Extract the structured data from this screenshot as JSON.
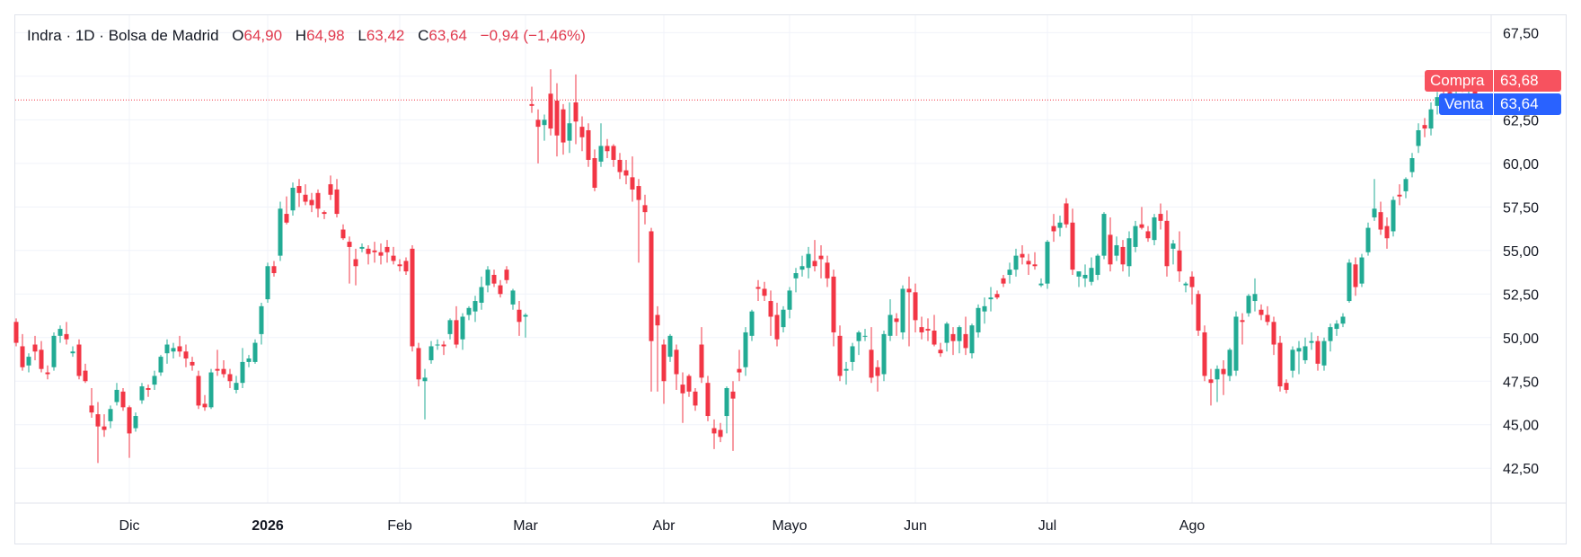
{
  "legend": {
    "title": "Indra · 1D · Bolsa de Madrid",
    "o_label": "O",
    "o_value": "64,90",
    "h_label": "H",
    "h_value": "64,98",
    "l_label": "L",
    "l_value": "63,42",
    "c_label": "C",
    "c_value": "63,64",
    "change": "−0,94 (−1,46%)"
  },
  "badges": {
    "compra_label": "Compra",
    "compra_value": "63,68",
    "venta_label": "Venta",
    "venta_value": "63,64"
  },
  "colors": {
    "up": "#22ab94",
    "down": "#f23645",
    "compra": "#f7525f",
    "venta": "#2962ff",
    "grid": "#f0f3fa"
  },
  "chart_data": {
    "type": "candlestick",
    "ylim": [
      40.5,
      68.5
    ],
    "y_ticks": [
      42.5,
      45,
      47.5,
      50,
      52.5,
      55,
      57.5,
      60,
      62.5,
      65,
      67.5
    ],
    "y_tick_labels": [
      "42,50",
      "45,00",
      "47,50",
      "50,00",
      "52,50",
      "55,00",
      "57,50",
      "60,00",
      "62,50",
      "65,00",
      "67,50"
    ],
    "x_ticks": [
      {
        "label": "Dic",
        "index": 18,
        "bold": false
      },
      {
        "label": "2026",
        "index": 40,
        "bold": true
      },
      {
        "label": "Feb",
        "index": 61,
        "bold": false
      },
      {
        "label": "Mar",
        "index": 81,
        "bold": false
      },
      {
        "label": "Abr",
        "index": 103,
        "bold": false
      },
      {
        "label": "Mayo",
        "index": 123,
        "bold": false
      },
      {
        "label": "Jun",
        "index": 143,
        "bold": false
      },
      {
        "label": "Jul",
        "index": 164,
        "bold": false
      },
      {
        "label": "Ago",
        "index": 187,
        "bold": false
      }
    ],
    "last_price": 63.64,
    "ohlc": [
      [
        50.9,
        51.1,
        49.5,
        49.7
      ],
      [
        49.5,
        50.2,
        48.1,
        48.3
      ],
      [
        48.4,
        49.1,
        48.0,
        48.9
      ],
      [
        49.6,
        50.1,
        48.7,
        49.2
      ],
      [
        49.3,
        49.8,
        48.0,
        48.2
      ],
      [
        48.0,
        48.4,
        47.6,
        47.9
      ],
      [
        48.3,
        50.3,
        48.1,
        50.1
      ],
      [
        50.1,
        50.7,
        49.7,
        50.5
      ],
      [
        50.2,
        50.9,
        49.6,
        49.9
      ],
      [
        49.1,
        49.5,
        48.9,
        49.2
      ],
      [
        49.6,
        49.9,
        47.6,
        47.8
      ],
      [
        48.1,
        48.5,
        47.4,
        47.5
      ],
      [
        46.1,
        47.1,
        45.4,
        45.7
      ],
      [
        45.6,
        46.3,
        42.8,
        44.9
      ],
      [
        44.9,
        45.6,
        44.3,
        44.7
      ],
      [
        45.2,
        46.1,
        44.8,
        45.9
      ],
      [
        46.3,
        47.4,
        46.1,
        47.0
      ],
      [
        46.9,
        47.1,
        45.8,
        46.0
      ],
      [
        46.0,
        46.1,
        43.1,
        44.5
      ],
      [
        44.8,
        45.7,
        44.6,
        45.5
      ],
      [
        46.4,
        47.4,
        46.2,
        47.2
      ],
      [
        47.1,
        47.3,
        46.6,
        47.0
      ],
      [
        47.3,
        48.1,
        47.0,
        47.8
      ],
      [
        48.0,
        49.0,
        47.8,
        48.9
      ],
      [
        49.1,
        49.9,
        48.5,
        49.6
      ],
      [
        49.2,
        49.7,
        48.8,
        49.4
      ],
      [
        49.5,
        50.1,
        48.9,
        49.2
      ],
      [
        49.2,
        49.6,
        48.3,
        48.8
      ],
      [
        48.6,
        48.9,
        48.1,
        48.4
      ],
      [
        47.8,
        48.1,
        45.9,
        46.1
      ],
      [
        46.2,
        46.7,
        45.8,
        46.0
      ],
      [
        46.0,
        48.2,
        45.9,
        48.0
      ],
      [
        48.2,
        49.3,
        47.8,
        48.1
      ],
      [
        48.2,
        48.7,
        47.7,
        47.9
      ],
      [
        47.9,
        48.2,
        47.1,
        47.5
      ],
      [
        47.0,
        47.8,
        46.8,
        47.4
      ],
      [
        47.4,
        49.4,
        47.1,
        48.6
      ],
      [
        48.6,
        49.0,
        48.3,
        48.8
      ],
      [
        48.6,
        49.9,
        48.5,
        49.7
      ],
      [
        50.2,
        52.0,
        49.6,
        51.8
      ],
      [
        52.2,
        54.3,
        52.0,
        54.1
      ],
      [
        54.1,
        54.4,
        53.5,
        53.7
      ],
      [
        54.7,
        57.8,
        54.4,
        57.4
      ],
      [
        57.1,
        58.1,
        56.5,
        56.6
      ],
      [
        57.3,
        58.9,
        57.0,
        58.6
      ],
      [
        58.7,
        59.1,
        57.5,
        58.3
      ],
      [
        58.2,
        58.8,
        57.6,
        57.8
      ],
      [
        57.9,
        58.3,
        57.2,
        57.6
      ],
      [
        58.3,
        58.5,
        56.9,
        57.4
      ],
      [
        57.2,
        57.3,
        56.8,
        57.1
      ],
      [
        58.8,
        59.3,
        57.9,
        58.2
      ],
      [
        58.5,
        59.1,
        56.9,
        57.1
      ],
      [
        56.2,
        56.5,
        55.6,
        55.7
      ],
      [
        55.5,
        55.8,
        53.1,
        55.2
      ],
      [
        54.5,
        55.1,
        53.0,
        54.1
      ],
      [
        55.1,
        55.4,
        54.9,
        55.2
      ],
      [
        55.1,
        55.3,
        54.2,
        54.8
      ],
      [
        55.0,
        55.5,
        54.3,
        54.9
      ],
      [
        54.9,
        55.4,
        54.2,
        54.7
      ],
      [
        55.2,
        55.6,
        54.3,
        54.9
      ],
      [
        54.7,
        55.2,
        54.2,
        54.4
      ],
      [
        54.2,
        54.5,
        53.8,
        54.1
      ],
      [
        54.4,
        54.6,
        53.6,
        53.8
      ],
      [
        55.1,
        55.3,
        49.2,
        49.5
      ],
      [
        49.4,
        49.7,
        47.2,
        47.6
      ],
      [
        47.5,
        48.2,
        45.3,
        47.7
      ],
      [
        48.7,
        49.8,
        48.5,
        49.5
      ],
      [
        49.6,
        49.9,
        49.3,
        49.6
      ],
      [
        49.6,
        49.8,
        49.0,
        49.5
      ],
      [
        50.2,
        51.1,
        49.9,
        51.0
      ],
      [
        51.0,
        51.8,
        49.4,
        49.6
      ],
      [
        49.9,
        51.4,
        49.3,
        51.2
      ],
      [
        51.3,
        51.8,
        51.0,
        51.7
      ],
      [
        51.5,
        52.4,
        50.9,
        52.1
      ],
      [
        52.0,
        53.5,
        51.6,
        52.9
      ],
      [
        53.0,
        54.1,
        52.6,
        53.9
      ],
      [
        53.6,
        53.9,
        52.9,
        53.1
      ],
      [
        53.0,
        53.3,
        52.3,
        52.5
      ],
      [
        53.9,
        54.1,
        53.1,
        53.3
      ],
      [
        51.9,
        52.8,
        51.6,
        52.7
      ],
      [
        51.6,
        52.1,
        50.1,
        50.9
      ],
      [
        51.2,
        51.4,
        50.0,
        51.3
      ],
      [
        63.4,
        64.4,
        62.9,
        63.3
      ],
      [
        62.5,
        63.1,
        60.0,
        62.1
      ],
      [
        62.2,
        62.8,
        61.3,
        62.5
      ],
      [
        64.0,
        65.4,
        61.6,
        62.0
      ],
      [
        63.6,
        64.6,
        60.4,
        61.6
      ],
      [
        63.1,
        63.4,
        60.5,
        61.2
      ],
      [
        61.3,
        63.5,
        60.6,
        62.3
      ],
      [
        63.5,
        65.1,
        61.1,
        62.4
      ],
      [
        62.1,
        62.7,
        60.7,
        61.5
      ],
      [
        61.9,
        62.3,
        59.8,
        60.2
      ],
      [
        60.3,
        60.8,
        58.4,
        58.6
      ],
      [
        60.1,
        62.3,
        59.8,
        61.0
      ],
      [
        61.0,
        61.4,
        60.3,
        60.7
      ],
      [
        61.0,
        61.1,
        59.8,
        60.2
      ],
      [
        60.2,
        60.6,
        59.1,
        59.5
      ],
      [
        59.6,
        60.2,
        58.8,
        59.3
      ],
      [
        59.2,
        60.4,
        57.8,
        58.5
      ],
      [
        58.7,
        59.1,
        54.3,
        57.9
      ],
      [
        57.6,
        58.2,
        56.5,
        57.2
      ],
      [
        56.1,
        56.3,
        46.9,
        49.8
      ],
      [
        51.3,
        51.8,
        46.9,
        50.7
      ],
      [
        49.6,
        49.9,
        46.2,
        47.5
      ],
      [
        48.9,
        50.2,
        48.6,
        50.1
      ],
      [
        49.3,
        49.6,
        47.0,
        47.9
      ],
      [
        47.3,
        48.0,
        45.1,
        46.8
      ],
      [
        47.8,
        47.9,
        46.6,
        46.9
      ],
      [
        46.9,
        47.1,
        45.8,
        46.1
      ],
      [
        49.6,
        50.6,
        47.4,
        47.7
      ],
      [
        47.4,
        47.8,
        45.2,
        45.5
      ],
      [
        44.8,
        45.3,
        43.6,
        44.5
      ],
      [
        44.7,
        45.1,
        44.0,
        44.3
      ],
      [
        45.5,
        47.2,
        44.5,
        47.1
      ],
      [
        46.9,
        47.5,
        43.5,
        46.5
      ],
      [
        48.2,
        49.3,
        47.5,
        48.0
      ],
      [
        48.3,
        50.6,
        47.8,
        50.3
      ],
      [
        50.1,
        51.6,
        49.8,
        51.5
      ],
      [
        52.9,
        53.3,
        52.1,
        52.8
      ],
      [
        52.8,
        53.2,
        52.1,
        52.4
      ],
      [
        52.1,
        52.7,
        50.1,
        51.2
      ],
      [
        51.3,
        52.0,
        49.5,
        49.9
      ],
      [
        50.6,
        51.8,
        50.3,
        51.6
      ],
      [
        51.6,
        52.9,
        51.1,
        52.7
      ],
      [
        53.4,
        54.0,
        52.6,
        53.7
      ],
      [
        53.9,
        54.7,
        53.5,
        54.1
      ],
      [
        54.0,
        55.2,
        53.4,
        54.8
      ],
      [
        54.4,
        55.6,
        53.8,
        54.1
      ],
      [
        54.7,
        55.3,
        53.4,
        54.5
      ],
      [
        54.3,
        54.7,
        52.9,
        53.4
      ],
      [
        53.5,
        53.9,
        49.5,
        50.3
      ],
      [
        50.1,
        50.7,
        47.5,
        47.8
      ],
      [
        48.1,
        48.6,
        47.3,
        48.2
      ],
      [
        48.6,
        49.7,
        48.1,
        49.5
      ],
      [
        49.8,
        50.4,
        49.0,
        50.3
      ],
      [
        50.1,
        50.5,
        49.8,
        50.1
      ],
      [
        49.3,
        50.6,
        47.4,
        47.7
      ],
      [
        48.3,
        48.7,
        46.9,
        47.8
      ],
      [
        47.9,
        50.4,
        47.5,
        50.2
      ],
      [
        50.1,
        52.2,
        49.8,
        51.3
      ],
      [
        51.1,
        51.4,
        50.1,
        50.9
      ],
      [
        50.3,
        53.0,
        49.9,
        52.8
      ],
      [
        52.8,
        53.5,
        49.5,
        52.6
      ],
      [
        52.6,
        53.1,
        50.3,
        51.0
      ],
      [
        50.6,
        51.2,
        49.9,
        50.3
      ],
      [
        50.5,
        51.1,
        49.8,
        50.4
      ],
      [
        50.4,
        51.3,
        49.5,
        49.6
      ],
      [
        49.3,
        49.7,
        48.9,
        49.1
      ],
      [
        49.7,
        50.9,
        49.2,
        50.8
      ],
      [
        50.2,
        50.6,
        49.0,
        49.8
      ],
      [
        49.8,
        50.7,
        49.1,
        50.6
      ],
      [
        50.2,
        51.2,
        49.0,
        49.4
      ],
      [
        49.1,
        50.8,
        48.8,
        50.7
      ],
      [
        50.3,
        51.9,
        50.0,
        51.7
      ],
      [
        51.5,
        52.3,
        50.8,
        51.8
      ],
      [
        52.2,
        52.9,
        51.5,
        52.3
      ],
      [
        52.5,
        52.7,
        52.2,
        52.3
      ],
      [
        53.4,
        53.6,
        52.9,
        53.1
      ],
      [
        53.6,
        54.3,
        53.1,
        53.9
      ],
      [
        53.9,
        55.1,
        53.5,
        54.7
      ],
      [
        54.8,
        55.3,
        54.2,
        54.6
      ],
      [
        54.4,
        54.8,
        53.6,
        54.2
      ],
      [
        54.2,
        54.9,
        53.9,
        54.1
      ],
      [
        53.0,
        53.4,
        52.9,
        53.1
      ],
      [
        53.1,
        55.6,
        52.8,
        55.5
      ],
      [
        56.4,
        57.1,
        55.5,
        56.1
      ],
      [
        56.3,
        57.0,
        55.8,
        56.6
      ],
      [
        57.7,
        58.0,
        56.3,
        56.5
      ],
      [
        56.6,
        57.4,
        53.6,
        53.9
      ],
      [
        53.5,
        53.8,
        52.9,
        53.8
      ],
      [
        53.4,
        54.2,
        52.9,
        53.6
      ],
      [
        53.2,
        54.6,
        53.0,
        54.0
      ],
      [
        53.6,
        54.8,
        53.3,
        54.7
      ],
      [
        54.7,
        57.2,
        54.5,
        57.1
      ],
      [
        55.9,
        56.9,
        53.8,
        54.2
      ],
      [
        54.7,
        55.8,
        54.4,
        55.3
      ],
      [
        55.2,
        55.6,
        53.8,
        54.2
      ],
      [
        54.1,
        56.1,
        53.5,
        55.7
      ],
      [
        55.2,
        56.7,
        54.9,
        56.4
      ],
      [
        56.5,
        57.5,
        56.2,
        56.3
      ],
      [
        56.1,
        56.4,
        55.5,
        55.7
      ],
      [
        55.6,
        57.1,
        55.3,
        56.9
      ],
      [
        57.1,
        57.7,
        56.2,
        56.7
      ],
      [
        56.7,
        57.3,
        53.5,
        54.1
      ],
      [
        55.1,
        55.6,
        54.2,
        55.4
      ],
      [
        55.0,
        56.1,
        53.2,
        53.8
      ],
      [
        53.0,
        53.2,
        52.6,
        53.1
      ],
      [
        53.5,
        53.8,
        51.9,
        52.9
      ],
      [
        52.5,
        52.7,
        50.1,
        50.4
      ],
      [
        50.3,
        50.7,
        47.5,
        47.8
      ],
      [
        47.6,
        48.2,
        46.1,
        47.4
      ],
      [
        47.6,
        48.4,
        46.3,
        48.2
      ],
      [
        48.2,
        48.7,
        46.7,
        47.9
      ],
      [
        47.8,
        49.4,
        47.5,
        49.3
      ],
      [
        48.1,
        51.5,
        47.8,
        51.2
      ],
      [
        51.0,
        51.4,
        49.6,
        50.9
      ],
      [
        51.4,
        52.5,
        51.2,
        52.4
      ],
      [
        52.1,
        53.4,
        51.5,
        52.5
      ],
      [
        51.6,
        51.9,
        51.0,
        51.3
      ],
      [
        51.3,
        51.8,
        50.7,
        50.9
      ],
      [
        50.9,
        51.2,
        49.0,
        49.6
      ],
      [
        49.7,
        50.1,
        46.9,
        47.2
      ],
      [
        47.4,
        47.6,
        46.8,
        47.0
      ],
      [
        48.1,
        49.5,
        47.7,
        49.3
      ],
      [
        49.2,
        49.8,
        47.9,
        49.4
      ],
      [
        48.7,
        50.0,
        48.5,
        49.5
      ],
      [
        49.7,
        50.3,
        49.3,
        49.8
      ],
      [
        49.8,
        50.1,
        48.1,
        48.5
      ],
      [
        48.4,
        50.0,
        48.1,
        49.8
      ],
      [
        49.8,
        50.8,
        49.2,
        50.6
      ],
      [
        50.5,
        51.0,
        50.1,
        50.8
      ],
      [
        50.8,
        51.4,
        50.6,
        51.2
      ],
      [
        52.1,
        54.5,
        52.0,
        54.3
      ],
      [
        54.2,
        54.6,
        52.4,
        52.9
      ],
      [
        53.1,
        54.8,
        52.9,
        54.6
      ],
      [
        54.9,
        56.6,
        54.7,
        56.3
      ],
      [
        56.9,
        59.1,
        56.7,
        57.4
      ],
      [
        57.2,
        57.8,
        55.9,
        56.2
      ],
      [
        56.4,
        56.9,
        55.1,
        55.7
      ],
      [
        56.1,
        58.1,
        55.8,
        57.9
      ],
      [
        58.2,
        58.8,
        57.6,
        58.1
      ],
      [
        58.4,
        59.2,
        58.0,
        59.1
      ],
      [
        59.5,
        60.6,
        59.2,
        60.3
      ],
      [
        61.0,
        62.3,
        60.6,
        61.9
      ],
      [
        62.2,
        62.6,
        61.5,
        62.0
      ],
      [
        62.0,
        63.5,
        61.6,
        63.1
      ],
      [
        63.3,
        64.1,
        62.8,
        63.8
      ],
      [
        64.3,
        64.8,
        63.9,
        64.2
      ],
      [
        64.1,
        64.5,
        63.4,
        63.9
      ],
      [
        64.4,
        65.0,
        64.0,
        64.5
      ],
      [
        64.5,
        64.9,
        64.1,
        64.3
      ],
      [
        64.5,
        65.3,
        63.9,
        64.7
      ],
      [
        64.9,
        64.98,
        63.42,
        63.64
      ]
    ]
  }
}
